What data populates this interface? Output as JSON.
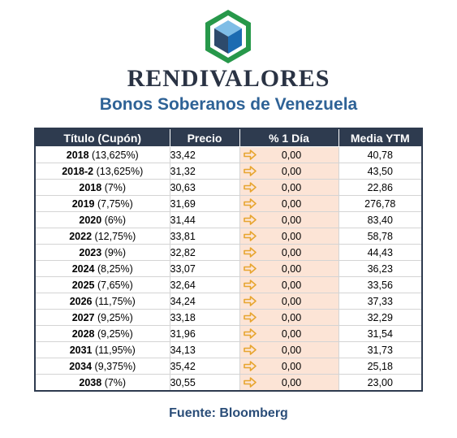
{
  "brand": {
    "name": "RENDIVALORES",
    "logo_icon": "hexagon-cube-logo-icon"
  },
  "title": "Bonos Soberanos de Venezuela",
  "table": {
    "headers": [
      "Título (Cupón)",
      "Precio",
      "% 1 Día",
      "Media YTM"
    ],
    "rows": [
      {
        "year": "2018",
        "coupon": "(13,625%)",
        "price": "33,42",
        "change": "0,00",
        "ytm": "40,78"
      },
      {
        "year": "2018-2",
        "coupon": "(13,625%)",
        "price": "31,32",
        "change": "0,00",
        "ytm": "43,50"
      },
      {
        "year": "2018",
        "coupon": "(7%)",
        "price": "30,63",
        "change": "0,00",
        "ytm": "22,86"
      },
      {
        "year": "2019",
        "coupon": "(7,75%)",
        "price": "31,69",
        "change": "0,00",
        "ytm": "276,78"
      },
      {
        "year": "2020",
        "coupon": "(6%)",
        "price": "31,44",
        "change": "0,00",
        "ytm": "83,40"
      },
      {
        "year": "2022",
        "coupon": "(12,75%)",
        "price": "33,81",
        "change": "0,00",
        "ytm": "58,78"
      },
      {
        "year": "2023",
        "coupon": "(9%)",
        "price": "32,82",
        "change": "0,00",
        "ytm": "44,43"
      },
      {
        "year": "2024",
        "coupon": "(8,25%)",
        "price": "33,07",
        "change": "0,00",
        "ytm": "36,23"
      },
      {
        "year": "2025",
        "coupon": "(7,65%)",
        "price": "32,64",
        "change": "0,00",
        "ytm": "33,56"
      },
      {
        "year": "2026",
        "coupon": "(11,75%)",
        "price": "34,24",
        "change": "0,00",
        "ytm": "37,33"
      },
      {
        "year": "2027",
        "coupon": "(9,25%)",
        "price": "33,18",
        "change": "0,00",
        "ytm": "32,29"
      },
      {
        "year": "2028",
        "coupon": "(9,25%)",
        "price": "31,96",
        "change": "0,00",
        "ytm": "31,54"
      },
      {
        "year": "2031",
        "coupon": "(11,95%)",
        "price": "34,13",
        "change": "0,00",
        "ytm": "31,73"
      },
      {
        "year": "2034",
        "coupon": "(9,375%)",
        "price": "35,42",
        "change": "0,00",
        "ytm": "25,18"
      },
      {
        "year": "2038",
        "coupon": "(7%)",
        "price": "30,55",
        "change": "0,00",
        "ytm": "23,00"
      }
    ],
    "change_icon": "arrow-right-icon",
    "colors": {
      "header_bg": "#2e3b4f",
      "change_bg": "#fce4d6",
      "arrow": "#e7a52f",
      "title": "#2e6296"
    }
  },
  "footer": {
    "source": "Fuente: Bloomberg"
  }
}
